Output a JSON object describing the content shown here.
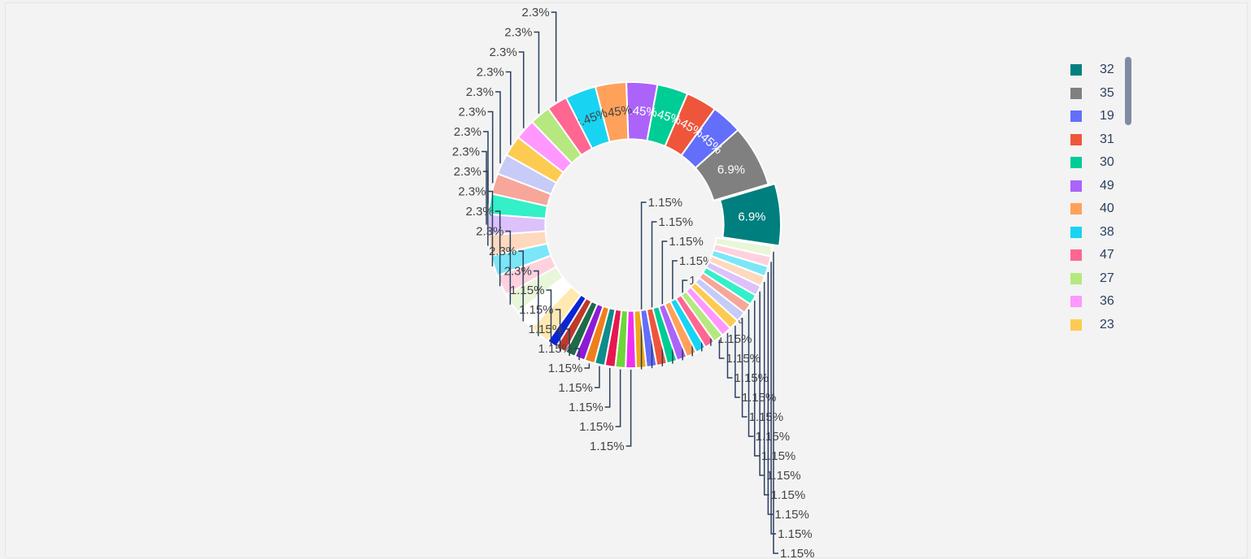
{
  "chart_data": {
    "type": "pie",
    "hole": 0.6,
    "title": "",
    "slices": [
      {
        "label": "32",
        "value": 6.9,
        "text": "6.9%",
        "color": "#007f7f"
      },
      {
        "label": "35",
        "value": 6.9,
        "text": "6.9%",
        "color": "#808080"
      },
      {
        "label": "19",
        "value": 3.45,
        "text": "3.45%",
        "color": "#636efa"
      },
      {
        "label": "31",
        "value": 3.45,
        "text": "3.45%",
        "color": "#ef553b"
      },
      {
        "label": "30",
        "value": 3.45,
        "text": "3.45%",
        "color": "#00cc96"
      },
      {
        "label": "49",
        "value": 3.45,
        "text": "3.45%",
        "color": "#ab63fa"
      },
      {
        "label": "40",
        "value": 3.45,
        "text": "3.45%",
        "color": "#ffa15a"
      },
      {
        "label": "38",
        "value": 3.45,
        "text": "3.45%",
        "color": "#19d3f3"
      },
      {
        "label": "47",
        "value": 2.3,
        "text": "2.3%",
        "color": "#ff6692"
      },
      {
        "label": "27",
        "value": 2.3,
        "text": "2.3%",
        "color": "#b6e880"
      },
      {
        "label": "36",
        "value": 2.3,
        "text": "2.3%",
        "color": "#ff97ff"
      },
      {
        "label": "23",
        "value": 2.3,
        "text": "2.3%",
        "color": "#fecb52"
      },
      {
        "label": "",
        "value": 2.3,
        "text": "2.3%",
        "color": "#c6cbf7"
      },
      {
        "label": "",
        "value": 2.3,
        "text": "2.3%",
        "color": "#f7a69a"
      },
      {
        "label": "",
        "value": 2.3,
        "text": "2.3%",
        "color": "#33f0c8"
      },
      {
        "label": "",
        "value": 2.3,
        "text": "2.3%",
        "color": "#dcc1fb"
      },
      {
        "label": "",
        "value": 2.3,
        "text": "2.3%",
        "color": "#ffd9bd"
      },
      {
        "label": "",
        "value": 2.3,
        "text": "2.3%",
        "color": "#7be6f8"
      },
      {
        "label": "",
        "value": 2.3,
        "text": "2.3%",
        "color": "#ffd1de"
      },
      {
        "label": "",
        "value": 2.3,
        "text": "2.3%",
        "color": "#e9f6d9"
      },
      {
        "label": "",
        "value": 2.3,
        "text": "2.3%",
        "color": "#ffffff"
      },
      {
        "label": "",
        "value": 2.3,
        "text": "2.3%",
        "color": "#ffe9b0"
      },
      {
        "label": "",
        "value": 1.15,
        "text": "1.15%",
        "color": "#0a24d6"
      },
      {
        "label": "",
        "value": 1.15,
        "text": "1.15%",
        "color": "#c0392b"
      },
      {
        "label": "",
        "value": 1.15,
        "text": "1.15%",
        "color": "#1e6b4a"
      },
      {
        "label": "",
        "value": 1.15,
        "text": "1.15%",
        "color": "#8e1ad4"
      },
      {
        "label": "",
        "value": 1.15,
        "text": "1.15%",
        "color": "#f07f1a"
      },
      {
        "label": "",
        "value": 1.15,
        "text": "1.15%",
        "color": "#0f8c8c"
      },
      {
        "label": "",
        "value": 1.15,
        "text": "1.15%",
        "color": "#e8174f"
      },
      {
        "label": "",
        "value": 1.15,
        "text": "1.15%",
        "color": "#6fd63a"
      },
      {
        "label": "",
        "value": 1.15,
        "text": "1.15%",
        "color": "#f030f0"
      },
      {
        "label": "",
        "value": 1.15,
        "text": "1.15%",
        "color": "#f0a818"
      },
      {
        "label": "",
        "value": 1.15,
        "text": "1.15%",
        "color": "#636efa"
      },
      {
        "label": "",
        "value": 1.15,
        "text": "1.15%",
        "color": "#ef553b"
      },
      {
        "label": "",
        "value": 1.15,
        "text": "1.15%",
        "color": "#00cc96"
      },
      {
        "label": "",
        "value": 1.15,
        "text": "1.15%",
        "color": "#ab63fa"
      },
      {
        "label": "",
        "value": 1.15,
        "text": "1.15%",
        "color": "#ffa15a"
      },
      {
        "label": "",
        "value": 1.15,
        "text": "1.15%",
        "color": "#19d3f3"
      },
      {
        "label": "",
        "value": 1.15,
        "text": "1.15%",
        "color": "#ff6692"
      },
      {
        "label": "",
        "value": 1.15,
        "text": "1.15%",
        "color": "#b6e880"
      },
      {
        "label": "",
        "value": 1.15,
        "text": "1.15%",
        "color": "#ff97ff"
      },
      {
        "label": "",
        "value": 1.15,
        "text": "1.15%",
        "color": "#fecb52"
      },
      {
        "label": "",
        "value": 1.15,
        "text": "1.15%",
        "color": "#c6cbf7"
      },
      {
        "label": "",
        "value": 1.15,
        "text": "1.15%",
        "color": "#f7a69a"
      },
      {
        "label": "",
        "value": 1.15,
        "text": "1.15%",
        "color": "#33f0c8"
      },
      {
        "label": "",
        "value": 1.15,
        "text": "1.15%",
        "color": "#dcc1fb"
      },
      {
        "label": "",
        "value": 1.15,
        "text": "1.15%",
        "color": "#ffd9bd"
      },
      {
        "label": "",
        "value": 1.15,
        "text": "1.15%",
        "color": "#7be6f8"
      },
      {
        "label": "",
        "value": 1.15,
        "text": "1.15%",
        "color": "#ffd1de"
      },
      {
        "label": "",
        "value": 1.15,
        "text": "1.15%",
        "color": "#e9f6d9"
      }
    ],
    "legend": {
      "placement": "right",
      "visible_items": [
        {
          "label": "32",
          "color": "#007f7f"
        },
        {
          "label": "35",
          "color": "#808080"
        },
        {
          "label": "19",
          "color": "#636efa"
        },
        {
          "label": "31",
          "color": "#ef553b"
        },
        {
          "label": "30",
          "color": "#00cc96"
        },
        {
          "label": "49",
          "color": "#ab63fa"
        },
        {
          "label": "40",
          "color": "#ffa15a"
        },
        {
          "label": "38",
          "color": "#19d3f3"
        },
        {
          "label": "47",
          "color": "#ff6692"
        },
        {
          "label": "27",
          "color": "#b6e880"
        },
        {
          "label": "36",
          "color": "#ff97ff"
        },
        {
          "label": "23",
          "color": "#fecb52"
        }
      ]
    }
  }
}
